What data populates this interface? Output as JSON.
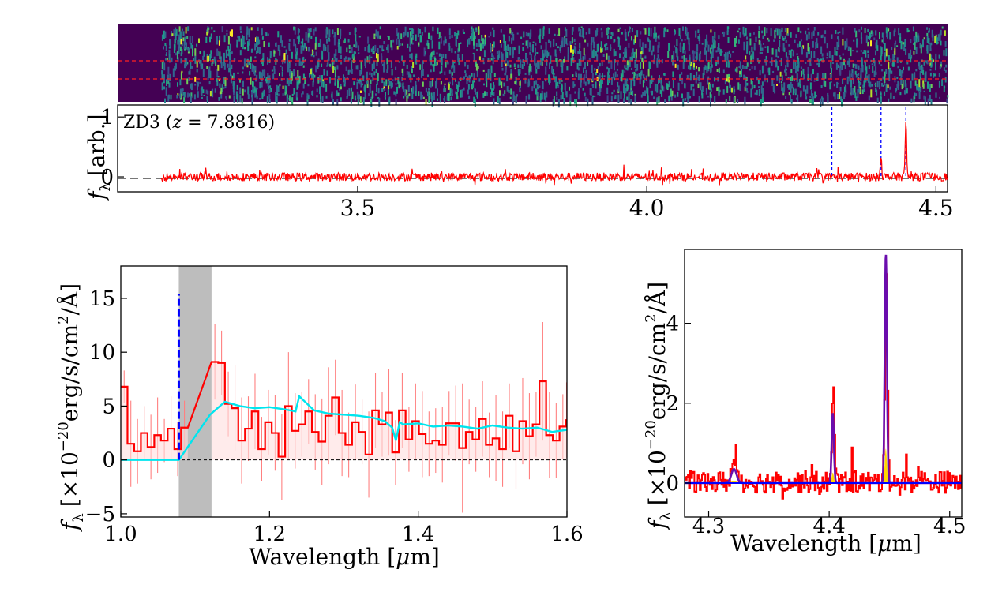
{
  "figure": {
    "colors": {
      "spec2d_bg": "#440154",
      "spectrum": "#ff0000",
      "lines": "#0000ff",
      "model": "#00e5ee",
      "fit": "#6a0dad",
      "gap": "#bdbdbd"
    }
  },
  "chart_data": [
    {
      "id": "spec2d",
      "type": "heatmap",
      "title": "",
      "description_values": "2D spectrum image with two red dashed extraction-aperture lines",
      "xlim": [
        3.085,
        4.52
      ]
    },
    {
      "id": "overview",
      "type": "line",
      "annotation": "ZD3 (",
      "z_symbol": "z",
      "z_equals": " = 7.8816)",
      "ylabel": "f",
      "ylabel_sub": "λ",
      "ylabel_unit": "[arb.]",
      "xlim": [
        3.085,
        4.52
      ],
      "ylim": [
        -0.25,
        1.2
      ],
      "xticks": [
        3.5,
        4.0,
        4.5
      ],
      "xtick_labels": [
        "3.5",
        "4.0",
        "4.5"
      ],
      "yticks": [
        0,
        1
      ],
      "ytick_labels": [
        "0",
        "1"
      ],
      "data_start": 3.16,
      "emission_lines": [
        4.32,
        4.405,
        4.448
      ],
      "peaks": [
        {
          "x": 4.405,
          "y": 0.38
        },
        {
          "x": 4.448,
          "y": 0.95
        }
      ]
    },
    {
      "id": "break",
      "type": "line",
      "xlabel": "Wavelength [",
      "xlabel_mu": "μ",
      "xlabel_unit": "m]",
      "ylabel_sym": "f",
      "ylabel_sub": "λ",
      "ylabel_pre": "[×10",
      "ylabel_exp": "−20",
      "ylabel_unit": "erg/s/cm",
      "ylabel_sq": "2",
      "ylabel_end": "/Å]",
      "xlim": [
        1.0,
        1.6
      ],
      "ylim": [
        -5.3,
        18
      ],
      "xticks": [
        1.0,
        1.2,
        1.4,
        1.6
      ],
      "xtick_labels": [
        "1.0",
        "1.2",
        "1.4",
        "1.6"
      ],
      "yticks": [
        -5,
        0,
        5,
        10,
        15
      ],
      "ytick_labels": [
        "−5",
        "0",
        "5",
        "10",
        "15"
      ],
      "shaded_band": [
        1.078,
        1.122
      ],
      "break_line": {
        "x": 1.078,
        "y_top": 15.4
      },
      "spectrum_x": [
        1.0,
        1.009,
        1.018,
        1.027,
        1.036,
        1.045,
        1.054,
        1.063,
        1.072,
        1.081,
        1.122,
        1.131,
        1.14,
        1.149,
        1.158,
        1.167,
        1.176,
        1.185,
        1.194,
        1.203,
        1.212,
        1.221,
        1.23,
        1.239,
        1.248,
        1.257,
        1.266,
        1.275,
        1.284,
        1.293,
        1.302,
        1.311,
        1.32,
        1.329,
        1.338,
        1.347,
        1.356,
        1.365,
        1.374,
        1.383,
        1.392,
        1.401,
        1.41,
        1.419,
        1.428,
        1.437,
        1.446,
        1.455,
        1.464,
        1.473,
        1.482,
        1.491,
        1.5,
        1.509,
        1.518,
        1.527,
        1.536,
        1.545,
        1.554,
        1.563,
        1.572,
        1.581,
        1.59,
        1.599
      ],
      "spectrum_y": [
        6.8,
        1.5,
        0.8,
        2.5,
        1.2,
        2.3,
        1.8,
        2.9,
        1.0,
        3.0,
        9.1,
        9.0,
        5.2,
        4.8,
        1.8,
        2.9,
        4.5,
        1.0,
        3.5,
        2.5,
        0.3,
        5.0,
        2.7,
        3.3,
        4.5,
        2.6,
        1.7,
        4.1,
        5.8,
        2.5,
        1.4,
        3.5,
        2.6,
        0.5,
        4.6,
        3.3,
        4.4,
        0.7,
        4.6,
        1.9,
        3.6,
        2.4,
        1.5,
        1.8,
        1.4,
        3.4,
        3.4,
        1.1,
        2.6,
        1.9,
        3.8,
        1.4,
        2.0,
        1.0,
        4.1,
        0.8,
        3.6,
        2.2,
        3.3,
        7.3,
        2.3,
        1.8,
        3.1,
        3.7
      ],
      "errors": [
        1.5,
        4.0,
        3.0,
        2.5,
        3.0,
        3.5,
        2.0,
        3.0,
        2.5,
        2.5,
        3.5,
        3.0,
        3.0,
        4.0,
        4.0,
        3.0,
        3.5,
        3.0,
        3.0,
        3.5,
        4.0,
        5.0,
        3.5,
        3.0,
        3.0,
        3.5,
        4.0,
        4.5,
        3.5,
        4.0,
        3.0,
        3.5,
        3.0,
        4.0,
        3.5,
        3.0,
        4.0,
        3.0,
        3.5,
        3.0,
        3.5,
        4.0,
        3.0,
        3.0,
        3.5,
        3.0,
        3.5,
        6.0,
        3.0,
        3.0,
        3.5,
        3.0,
        4.0,
        3.5,
        3.0,
        3.5,
        4.0,
        4.0,
        3.0,
        5.5,
        4.0,
        3.5,
        3.0,
        3.5
      ],
      "model_x": [
        1.0,
        1.05,
        1.078,
        1.1,
        1.12,
        1.14,
        1.16,
        1.18,
        1.2,
        1.22,
        1.235,
        1.24,
        1.26,
        1.28,
        1.3,
        1.32,
        1.34,
        1.355,
        1.365,
        1.37,
        1.375,
        1.38,
        1.4,
        1.42,
        1.44,
        1.46,
        1.48,
        1.5,
        1.52,
        1.54,
        1.56,
        1.58,
        1.6
      ],
      "model_y": [
        0.0,
        0.0,
        0.0,
        2.2,
        4.2,
        5.4,
        5.0,
        4.8,
        4.9,
        4.7,
        4.5,
        5.9,
        4.6,
        4.3,
        4.2,
        4.1,
        3.9,
        3.6,
        3.0,
        1.8,
        3.5,
        3.3,
        3.4,
        3.1,
        3.2,
        3.1,
        2.9,
        3.2,
        3.0,
        2.9,
        3.0,
        2.6,
        2.8
      ],
      "zero_line": 0
    },
    {
      "id": "lines",
      "type": "line",
      "xlabel": "Wavelength [",
      "xlabel_mu": "μ",
      "xlabel_unit": "m]",
      "ylabel_sym": "f",
      "ylabel_sub": "λ",
      "ylabel_pre": "[×10",
      "ylabel_exp": "−20",
      "ylabel_unit": "erg/s/cm",
      "ylabel_sq": "2",
      "ylabel_end": "/Å]",
      "xlim": [
        4.28,
        4.51
      ],
      "ylim": [
        -0.85,
        5.85
      ],
      "xticks": [
        4.3,
        4.4,
        4.5
      ],
      "xtick_labels": [
        "4.3",
        "4.4",
        "4.5"
      ],
      "yticks": [
        0,
        2,
        4
      ],
      "ytick_labels": [
        "0",
        "2",
        "4"
      ],
      "peaks": [
        {
          "x": 4.321,
          "amp": 0.45,
          "width": 0.0025
        },
        {
          "x": 4.403,
          "amp": 2.4,
          "width": 0.0009
        },
        {
          "x": 4.447,
          "amp": 5.7,
          "width": 0.001
        }
      ],
      "fit_peaks": [
        {
          "x": 4.321,
          "amp": 0.35
        },
        {
          "x": 4.403,
          "amp": 1.75
        },
        {
          "x": 4.447,
          "amp": 5.75
        }
      ]
    }
  ]
}
